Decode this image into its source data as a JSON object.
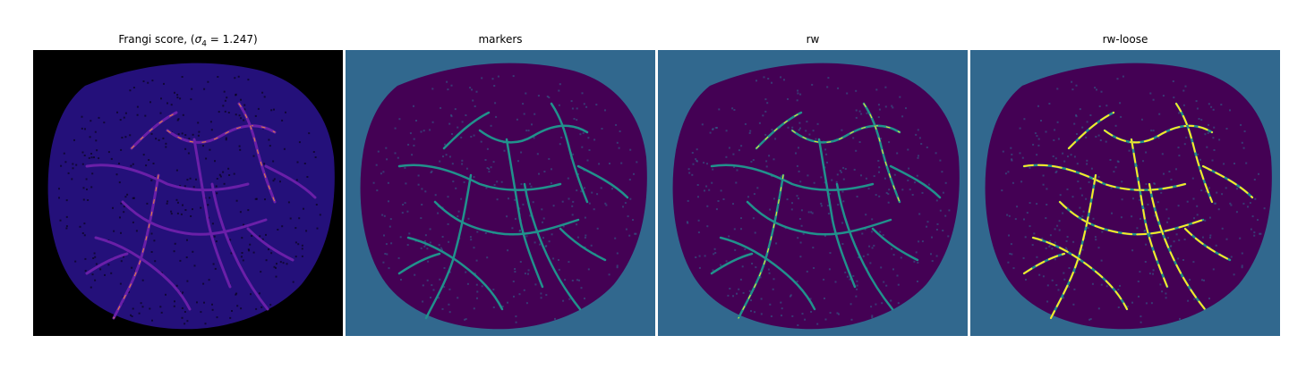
{
  "panels": [
    {
      "id": "frangi",
      "title_prefix": "Frangi score, (",
      "title_symbol": "σ",
      "title_subscript": "4",
      "title_suffix": " = 1.247)",
      "colors": {
        "background": "#000000",
        "fill": "#24107a",
        "vessel": "#6a1fa8",
        "highlight": "#e98a3a"
      }
    },
    {
      "id": "markers",
      "title": "markers",
      "colors": {
        "background": "#31688e",
        "fill": "#440154",
        "vessel": "#21918c",
        "highlight": "#21918c"
      }
    },
    {
      "id": "rw",
      "title": "rw",
      "colors": {
        "background": "#31688e",
        "fill": "#440154",
        "vessel": "#21918c",
        "highlight": "#fde725"
      }
    },
    {
      "id": "rw-loose",
      "title": "rw-loose",
      "colors": {
        "background": "#31688e",
        "fill": "#440154",
        "vessel": "#21918c",
        "highlight": "#fde725"
      }
    }
  ]
}
